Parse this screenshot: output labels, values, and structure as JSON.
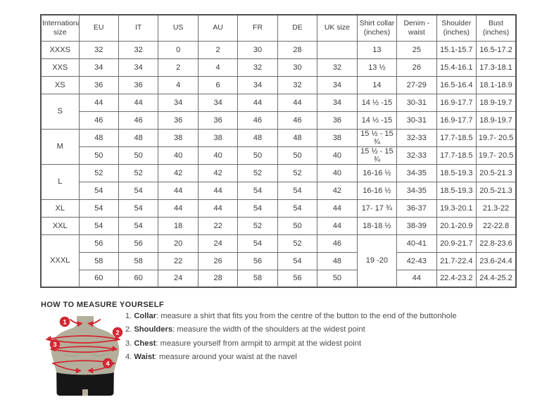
{
  "table": {
    "headers": [
      "International size",
      "EU",
      "IT",
      "US",
      "AU",
      "FR",
      "DE",
      "UK size",
      "Shirt collar (inches)",
      "Denim - waist",
      "Shoulder (inches)",
      "Bust (inches)"
    ],
    "rows": [
      [
        {
          "t": "XXXS"
        },
        "32",
        "32",
        "0",
        "2",
        "30",
        "28",
        "",
        "13",
        "25",
        "15.1-15.7",
        "16.5-17.2"
      ],
      [
        {
          "t": "XXS"
        },
        "34",
        "34",
        "2",
        "4",
        "32",
        "30",
        "32",
        "13 ½",
        "26",
        "15.4-16.1",
        "17.3-18.1"
      ],
      [
        {
          "t": "XS"
        },
        "36",
        "36",
        "4",
        "6",
        "34",
        "32",
        "34",
        "14",
        "27-29",
        "16.5-16.4",
        "18.1-18.9"
      ],
      [
        {
          "t": "S",
          "rs": 2
        },
        "44",
        "44",
        "34",
        "34",
        "44",
        "44",
        "34",
        "14 ½ -15",
        "30-31",
        "16.9-17.7",
        "18.9-19.7"
      ],
      [
        null,
        "46",
        "46",
        "36",
        "36",
        "46",
        "46",
        "36",
        "14 ½ -15",
        "30-31",
        "16.9-17.7",
        "18.9-19.7"
      ],
      [
        {
          "t": "M",
          "rs": 2
        },
        "48",
        "48",
        "38",
        "38",
        "48",
        "48",
        "38",
        "15 ½ - 15 ¾",
        "32-33",
        "17.7-18.5",
        "19.7- 20.5"
      ],
      [
        null,
        "50",
        "50",
        "40",
        "40",
        "50",
        "50",
        "40",
        "15 ½ - 15 ¾",
        "32-33",
        "17.7-18.5",
        "19.7- 20.5"
      ],
      [
        {
          "t": "L",
          "rs": 2
        },
        "52",
        "52",
        "42",
        "42",
        "52",
        "52",
        "40",
        "16-16 ½",
        "34-35",
        "18.5-19.3",
        "20.5-21.3"
      ],
      [
        null,
        "54",
        "54",
        "44",
        "44",
        "54",
        "54",
        "42",
        "16-16 ½",
        "34-35",
        "18.5-19.3",
        "20.5-21.3"
      ],
      [
        {
          "t": "XL"
        },
        "54",
        "54",
        "44",
        "44",
        "54",
        "54",
        "44",
        "17- 17 ¾",
        "36-37",
        "19.3-20.1",
        "21.3-22"
      ],
      [
        {
          "t": "XXL"
        },
        "54",
        "54",
        "18",
        "22",
        "52",
        "50",
        "44",
        "18-18 ½",
        "38-39",
        "20.1-20.9",
        "22-22.8"
      ],
      [
        {
          "t": "XXXL",
          "rs": 3
        },
        "56",
        "56",
        "20",
        "24",
        "54",
        "52",
        "46",
        {
          "t": "19 -20",
          "rs": 3
        },
        "40-41",
        "20.9-21.7",
        "22.8-23.6"
      ],
      [
        null,
        "58",
        "58",
        "22",
        "26",
        "56",
        "54",
        "48",
        null,
        "42-43",
        "21.7-22.4",
        "23.6-24.4"
      ],
      [
        null,
        "60",
        "60",
        "24",
        "28",
        "58",
        "56",
        "50",
        null,
        "44",
        "22.4-23.2",
        "24.4-25.2"
      ]
    ]
  },
  "measure": {
    "title": "HOW TO MEASURE YOURSELF",
    "items": [
      {
        "num": "1.",
        "label": "Collar",
        "text": ": measure a shirt that fits you from the centre of the button to the end of the buttonhole"
      },
      {
        "num": "2.",
        "label": "Shoulders",
        "text": ": measure the width of the shoulders at the widest point"
      },
      {
        "num": "3.",
        "label": "Chest",
        "text": ": measure yourself from armpit to armpit at the widest point"
      },
      {
        "num": "4.",
        "label": "Waist",
        "text": ": measure around your waist at the navel"
      }
    ]
  },
  "figure": {
    "badges": [
      "1",
      "2",
      "3",
      "4"
    ],
    "colors": {
      "torso": "#b3af9c",
      "shorts": "#161616",
      "accent_red": "#d22731"
    }
  }
}
